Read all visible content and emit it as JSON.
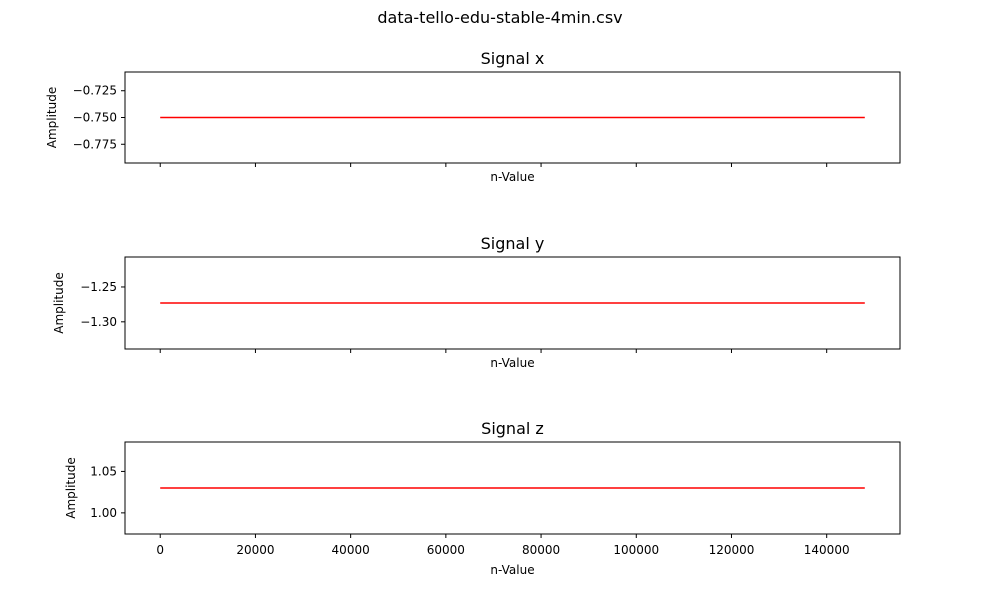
{
  "figure": {
    "title": "data-tello-edu-stable-4min.csv"
  },
  "chart_data": [
    {
      "type": "line",
      "title": "Signal x",
      "xlabel": "n-Value",
      "ylabel": "Amplitude",
      "xlim": [
        -7400,
        155400
      ],
      "ylim": [
        -0.7925,
        -0.7075
      ],
      "yticks": [
        -0.725,
        -0.75,
        -0.775
      ],
      "ytick_labels": [
        "−0.725",
        "−0.750",
        "−0.775"
      ],
      "xticks": [
        0,
        20000,
        40000,
        60000,
        80000,
        100000,
        120000,
        140000
      ],
      "show_xtick_labels": false,
      "grid": false,
      "series": [
        {
          "x": [
            0,
            148000
          ],
          "y": [
            -0.75,
            -0.75
          ],
          "color": "#ff0000"
        }
      ]
    },
    {
      "type": "line",
      "title": "Signal y",
      "xlabel": "n-Value",
      "ylabel": "Amplitude",
      "xlim": [
        -7400,
        155400
      ],
      "ylim": [
        -1.339,
        -1.207
      ],
      "yticks": [
        -1.25,
        -1.3
      ],
      "ytick_labels": [
        "−1.25",
        "−1.30"
      ],
      "xticks": [
        0,
        20000,
        40000,
        60000,
        80000,
        100000,
        120000,
        140000
      ],
      "show_xtick_labels": false,
      "grid": false,
      "series": [
        {
          "x": [
            0,
            148000
          ],
          "y": [
            -1.273,
            -1.273
          ],
          "color": "#ff0000"
        }
      ]
    },
    {
      "type": "line",
      "title": "Signal z",
      "xlabel": "n-Value",
      "ylabel": "Amplitude",
      "xlim": [
        -7400,
        155400
      ],
      "ylim": [
        0.9745,
        1.0855
      ],
      "yticks": [
        1.05,
        1.0
      ],
      "ytick_labels": [
        "1.05",
        "1.00"
      ],
      "xticks": [
        0,
        20000,
        40000,
        60000,
        80000,
        100000,
        120000,
        140000
      ],
      "xtick_labels": [
        "0",
        "20000",
        "40000",
        "60000",
        "80000",
        "100000",
        "120000",
        "140000"
      ],
      "show_xtick_labels": true,
      "grid": false,
      "series": [
        {
          "x": [
            0,
            148000
          ],
          "y": [
            1.03,
            1.03
          ],
          "color": "#ff0000"
        }
      ]
    }
  ]
}
